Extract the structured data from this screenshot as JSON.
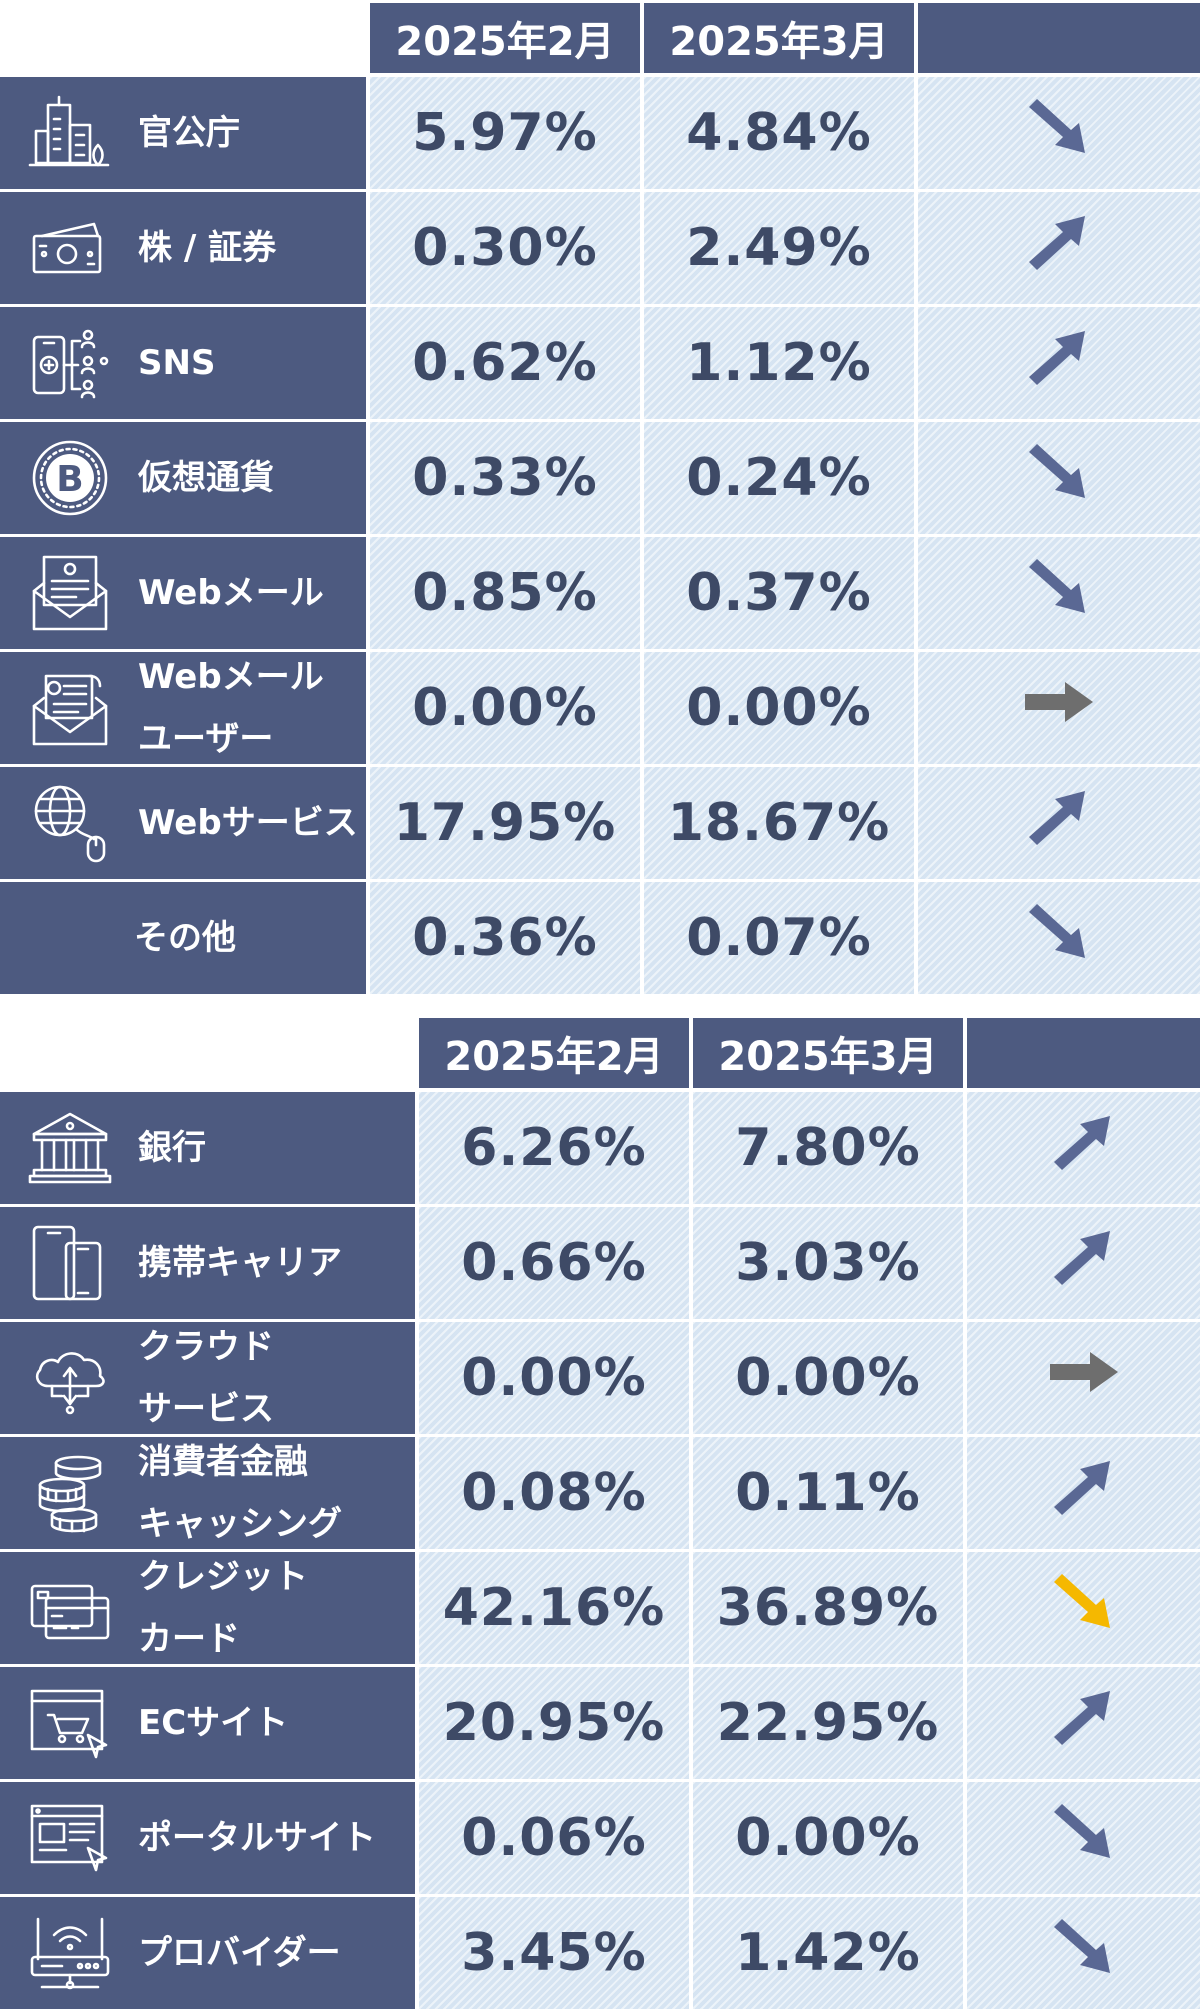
{
  "chart_data": [
    {
      "type": "table",
      "columns": [
        "2025年2月",
        "2025年3月"
      ],
      "rows": [
        {
          "label": [
            "官公庁"
          ],
          "icon": "government-building-icon",
          "values": [
            "5.97%",
            "4.84%"
          ],
          "trend": "down"
        },
        {
          "label": [
            "株 / 証券"
          ],
          "icon": "banknote-icon",
          "values": [
            "0.30%",
            "2.49%"
          ],
          "trend": "up"
        },
        {
          "label": [
            "SNS"
          ],
          "icon": "social-network-phone-icon",
          "values": [
            "0.62%",
            "1.12%"
          ],
          "trend": "up"
        },
        {
          "label": [
            "仮想通貨"
          ],
          "icon": "bitcoin-icon",
          "values": [
            "0.33%",
            "0.24%"
          ],
          "trend": "down"
        },
        {
          "label": [
            "Webメール"
          ],
          "icon": "email-letter-icon",
          "values": [
            "0.85%",
            "0.37%"
          ],
          "trend": "down"
        },
        {
          "label": [
            "Webメール",
            "ユーザー"
          ],
          "icon": "email-user-icon",
          "values": [
            "0.00%",
            "0.00%"
          ],
          "trend": "flat"
        },
        {
          "label": [
            "Webサービス"
          ],
          "icon": "globe-mouse-icon",
          "values": [
            "17.95%",
            "18.67%"
          ],
          "trend": "up"
        },
        {
          "label": [
            "その他"
          ],
          "icon": "",
          "values": [
            "0.36%",
            "0.07%"
          ],
          "trend": "down"
        }
      ]
    },
    {
      "type": "table",
      "columns": [
        "2025年2月",
        "2025年3月"
      ],
      "rows": [
        {
          "label": [
            "銀行"
          ],
          "icon": "bank-icon",
          "values": [
            "6.26%",
            "7.80%"
          ],
          "trend": "up"
        },
        {
          "label": [
            "携帯キャリア"
          ],
          "icon": "mobile-devices-icon",
          "values": [
            "0.66%",
            "3.03%"
          ],
          "trend": "up"
        },
        {
          "label": [
            "クラウド",
            "サービス"
          ],
          "icon": "cloud-icon",
          "values": [
            "0.00%",
            "0.00%"
          ],
          "trend": "flat"
        },
        {
          "label": [
            "消費者金融",
            "キャッシング"
          ],
          "icon": "coin-stack-icon",
          "values": [
            "0.08%",
            "0.11%"
          ],
          "trend": "up"
        },
        {
          "label": [
            "クレジット",
            "カード"
          ],
          "icon": "credit-card-icon",
          "values": [
            "42.16%",
            "36.89%"
          ],
          "trend": "down-highlight"
        },
        {
          "label": [
            "ECサイト"
          ],
          "icon": "shopping-cart-icon",
          "values": [
            "20.95%",
            "22.95%"
          ],
          "trend": "up"
        },
        {
          "label": [
            "ポータルサイト"
          ],
          "icon": "web-portal-icon",
          "values": [
            "0.06%",
            "0.00%"
          ],
          "trend": "down"
        },
        {
          "label": [
            "プロバイダー"
          ],
          "icon": "router-icon",
          "values": [
            "3.45%",
            "1.42%"
          ],
          "trend": "down"
        }
      ]
    }
  ],
  "colors": {
    "header": "#4d5a80",
    "label_bg": "#4d5a80",
    "cell_bg": "#d6e4f2",
    "value_text": "#3e4a66",
    "arrow_trend": "#5a6894",
    "arrow_flat": "#6e6e6e",
    "arrow_highlight": "#f5b800"
  }
}
